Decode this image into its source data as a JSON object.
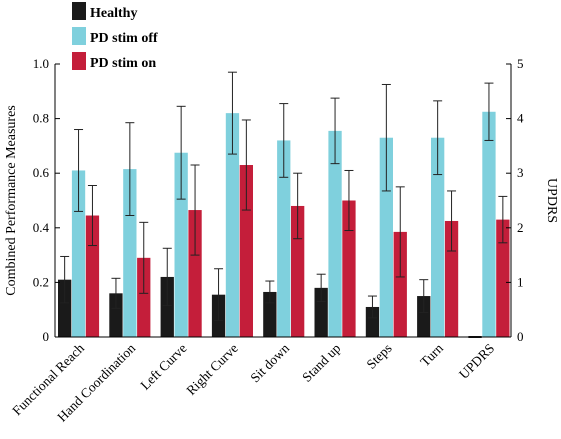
{
  "chart_data": {
    "type": "bar",
    "categories": [
      "Functional Reach",
      "Hand Coordination",
      "Left Curve",
      "Right Curve",
      "Sit down",
      "Stand up",
      "Steps",
      "Turn",
      "UPDRS"
    ],
    "series": [
      {
        "name": "Healthy",
        "color": "#1a1a1a",
        "values": [
          0.21,
          0.16,
          0.22,
          0.155,
          0.165,
          0.18,
          0.11,
          0.15,
          0.0
        ],
        "errors": [
          0.085,
          0.055,
          0.105,
          0.095,
          0.04,
          0.05,
          0.04,
          0.06,
          0.0
        ]
      },
      {
        "name": "PD stim off",
        "color": "#7fd0dd",
        "values": [
          0.61,
          0.615,
          0.675,
          0.82,
          0.72,
          0.755,
          0.73,
          0.73,
          0.825
        ],
        "errors": [
          0.15,
          0.17,
          0.17,
          0.15,
          0.135,
          0.12,
          0.195,
          0.135,
          0.105
        ]
      },
      {
        "name": "PD stim on",
        "color": "#c41e3a",
        "values": [
          0.445,
          0.29,
          0.465,
          0.63,
          0.48,
          0.5,
          0.385,
          0.425,
          0.43
        ],
        "errors": [
          0.11,
          0.13,
          0.165,
          0.165,
          0.12,
          0.11,
          0.165,
          0.11,
          0.085
        ]
      }
    ],
    "ylabel": "Combined Performance Measures",
    "y2label": "UPDRS",
    "ylim": [
      0,
      1
    ],
    "y2lim": [
      0,
      5
    ],
    "yticks": [
      "0",
      "0.2",
      "0.4",
      "0.6",
      "0.8",
      "1.0"
    ],
    "y2ticks": [
      "0",
      "1",
      "2",
      "3",
      "4",
      "5"
    ],
    "legend_position": "top-left",
    "grid": false
  }
}
